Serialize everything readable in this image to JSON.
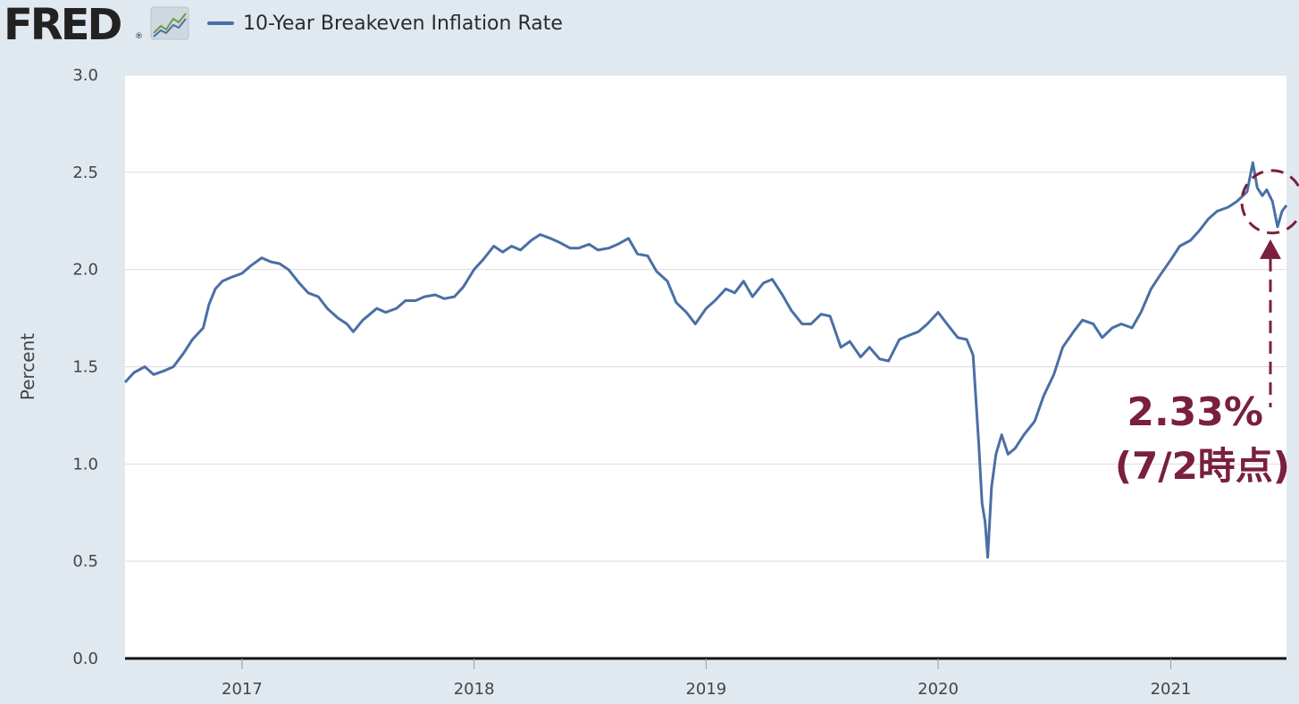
{
  "brand": {
    "logo_text": "FRED",
    "registered_mark": "®",
    "logo_icon": "chart-trend-icon"
  },
  "legend": {
    "series_label": "10-Year Breakeven Inflation Rate",
    "series_color": "#4a6fa5"
  },
  "colors": {
    "plot_background": "#ffffff",
    "page_background": "#e1e9f0",
    "gridline": "#dddddd",
    "annotation": "#7a1f3d"
  },
  "annotation": {
    "value_text": "2.33%",
    "date_text": "(7/2時点)",
    "circled_point": {
      "x": "2021-07-02",
      "y": 2.33
    }
  },
  "chart_data": {
    "type": "line",
    "title": "",
    "xlabel": "",
    "ylabel": "Percent",
    "ylim": [
      0.0,
      3.0
    ],
    "yticks": [
      0.0,
      0.5,
      1.0,
      1.5,
      2.0,
      2.5,
      3.0
    ],
    "ytick_labels": [
      "0.0",
      "0.5",
      "1.0",
      "1.5",
      "2.0",
      "2.5",
      "3.0"
    ],
    "xlim": [
      "2016-07-01",
      "2021-07-02"
    ],
    "xticks": [
      "2017-01-01",
      "2018-01-01",
      "2019-01-01",
      "2020-01-01",
      "2021-01-01"
    ],
    "xtick_labels": [
      "2017",
      "2018",
      "2019",
      "2020",
      "2021"
    ],
    "grid": "horizontal",
    "legend_position": "top-left",
    "series": [
      {
        "name": "10-Year Breakeven Inflation Rate",
        "x": [
          "2016-07-01",
          "2016-07-15",
          "2016-08-01",
          "2016-08-15",
          "2016-09-01",
          "2016-09-15",
          "2016-10-01",
          "2016-10-15",
          "2016-11-01",
          "2016-11-10",
          "2016-11-20",
          "2016-12-01",
          "2016-12-15",
          "2017-01-01",
          "2017-01-15",
          "2017-02-01",
          "2017-02-15",
          "2017-03-01",
          "2017-03-15",
          "2017-04-01",
          "2017-04-15",
          "2017-05-01",
          "2017-05-15",
          "2017-06-01",
          "2017-06-15",
          "2017-06-25",
          "2017-07-10",
          "2017-08-01",
          "2017-08-15",
          "2017-09-01",
          "2017-09-15",
          "2017-10-01",
          "2017-10-15",
          "2017-11-01",
          "2017-11-15",
          "2017-12-01",
          "2017-12-15",
          "2018-01-01",
          "2018-01-15",
          "2018-02-01",
          "2018-02-15",
          "2018-03-01",
          "2018-03-15",
          "2018-04-01",
          "2018-04-15",
          "2018-05-01",
          "2018-05-15",
          "2018-06-01",
          "2018-06-15",
          "2018-07-01",
          "2018-07-15",
          "2018-08-01",
          "2018-08-15",
          "2018-09-01",
          "2018-09-15",
          "2018-10-01",
          "2018-10-15",
          "2018-11-01",
          "2018-11-15",
          "2018-12-01",
          "2018-12-15",
          "2019-01-01",
          "2019-01-15",
          "2019-02-01",
          "2019-02-15",
          "2019-03-01",
          "2019-03-15",
          "2019-04-01",
          "2019-04-15",
          "2019-05-01",
          "2019-05-15",
          "2019-06-01",
          "2019-06-15",
          "2019-07-01",
          "2019-07-15",
          "2019-08-01",
          "2019-08-15",
          "2019-09-01",
          "2019-09-15",
          "2019-10-01",
          "2019-10-15",
          "2019-11-01",
          "2019-11-15",
          "2019-12-01",
          "2019-12-15",
          "2020-01-01",
          "2020-01-15",
          "2020-02-01",
          "2020-02-15",
          "2020-02-25",
          "2020-03-05",
          "2020-03-10",
          "2020-03-15",
          "2020-03-19",
          "2020-03-25",
          "2020-04-01",
          "2020-04-10",
          "2020-04-20",
          "2020-05-01",
          "2020-05-15",
          "2020-06-01",
          "2020-06-15",
          "2020-07-01",
          "2020-07-15",
          "2020-08-01",
          "2020-08-15",
          "2020-09-01",
          "2020-09-15",
          "2020-10-01",
          "2020-10-15",
          "2020-11-01",
          "2020-11-15",
          "2020-12-01",
          "2020-12-15",
          "2021-01-01",
          "2021-01-15",
          "2021-02-01",
          "2021-02-15",
          "2021-03-01",
          "2021-03-15",
          "2021-04-01",
          "2021-04-15",
          "2021-05-01",
          "2021-05-10",
          "2021-05-17",
          "2021-05-25",
          "2021-06-01",
          "2021-06-10",
          "2021-06-18",
          "2021-06-25",
          "2021-07-02"
        ],
        "y": [
          1.42,
          1.47,
          1.5,
          1.46,
          1.48,
          1.5,
          1.57,
          1.64,
          1.7,
          1.82,
          1.9,
          1.94,
          1.96,
          1.98,
          2.02,
          2.06,
          2.04,
          2.03,
          2.0,
          1.93,
          1.88,
          1.86,
          1.8,
          1.75,
          1.72,
          1.68,
          1.74,
          1.8,
          1.78,
          1.8,
          1.84,
          1.84,
          1.86,
          1.87,
          1.85,
          1.86,
          1.91,
          2.0,
          2.05,
          2.12,
          2.09,
          2.12,
          2.1,
          2.15,
          2.18,
          2.16,
          2.14,
          2.11,
          2.11,
          2.13,
          2.1,
          2.11,
          2.13,
          2.16,
          2.08,
          2.07,
          1.99,
          1.94,
          1.83,
          1.78,
          1.72,
          1.8,
          1.84,
          1.9,
          1.88,
          1.94,
          1.86,
          1.93,
          1.95,
          1.87,
          1.79,
          1.72,
          1.72,
          1.77,
          1.76,
          1.6,
          1.63,
          1.55,
          1.6,
          1.54,
          1.53,
          1.64,
          1.66,
          1.68,
          1.72,
          1.78,
          1.72,
          1.65,
          1.64,
          1.56,
          1.1,
          0.8,
          0.7,
          0.52,
          0.88,
          1.05,
          1.15,
          1.05,
          1.08,
          1.15,
          1.22,
          1.35,
          1.46,
          1.6,
          1.68,
          1.74,
          1.72,
          1.65,
          1.7,
          1.72,
          1.7,
          1.78,
          1.9,
          1.97,
          2.05,
          2.12,
          2.15,
          2.2,
          2.26,
          2.3,
          2.32,
          2.35,
          2.4,
          2.55,
          2.42,
          2.38,
          2.41,
          2.35,
          2.22,
          2.3,
          2.33
        ]
      }
    ]
  }
}
